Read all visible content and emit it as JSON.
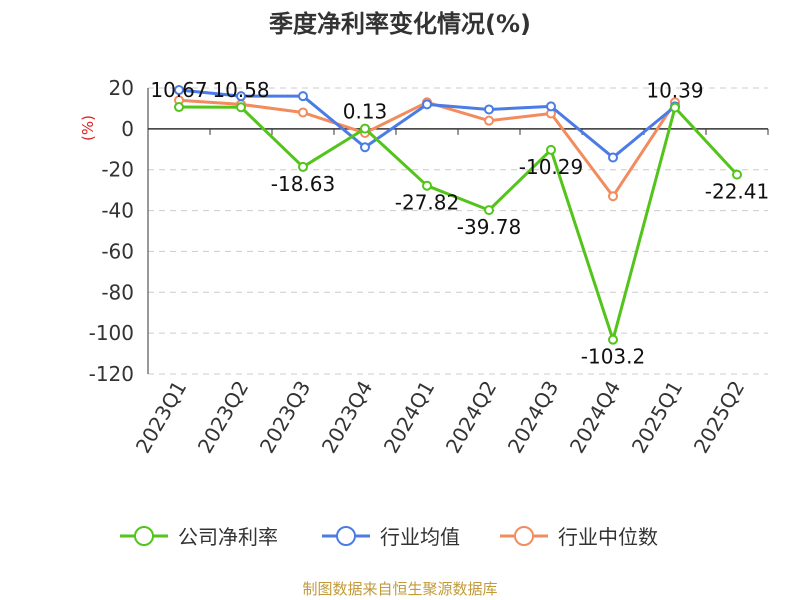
{
  "title": "季度净利率变化情况(%)",
  "source": "制图数据来自恒生聚源数据库",
  "chart_data": {
    "type": "line",
    "title": "季度净利率变化情况(%)",
    "ylabel": "(%)",
    "ylim": [
      -120,
      20
    ],
    "yticks": [
      20,
      0,
      -20,
      -40,
      -60,
      -80,
      -100,
      -120
    ],
    "categories": [
      "2023Q1",
      "2023Q2",
      "2023Q3",
      "2023Q4",
      "2024Q1",
      "2024Q2",
      "2024Q3",
      "2024Q4",
      "2025Q1",
      "2025Q2"
    ],
    "grid": "horizontal dashed",
    "legend_position": "bottom",
    "series": [
      {
        "name": "公司净利率",
        "color": "#52c41a",
        "values": [
          10.67,
          10.58,
          -18.63,
          0.13,
          -27.82,
          -39.78,
          -10.29,
          -103.2,
          10.39,
          -22.41
        ],
        "labels": [
          "10.67",
          "10.58",
          "-18.63",
          "0.13",
          "-27.82",
          "-39.78",
          "-10.29",
          "-103.2",
          "10.39",
          "-22.41"
        ]
      },
      {
        "name": "行业均值",
        "color": "#4b7be5",
        "values": [
          19,
          16,
          16,
          -9,
          12,
          9.5,
          11,
          -14,
          11,
          null
        ]
      },
      {
        "name": "行业中位数",
        "color": "#f28b5e",
        "values": [
          14,
          12,
          8,
          -2,
          13,
          4,
          7.5,
          -33,
          13,
          null
        ]
      }
    ]
  }
}
